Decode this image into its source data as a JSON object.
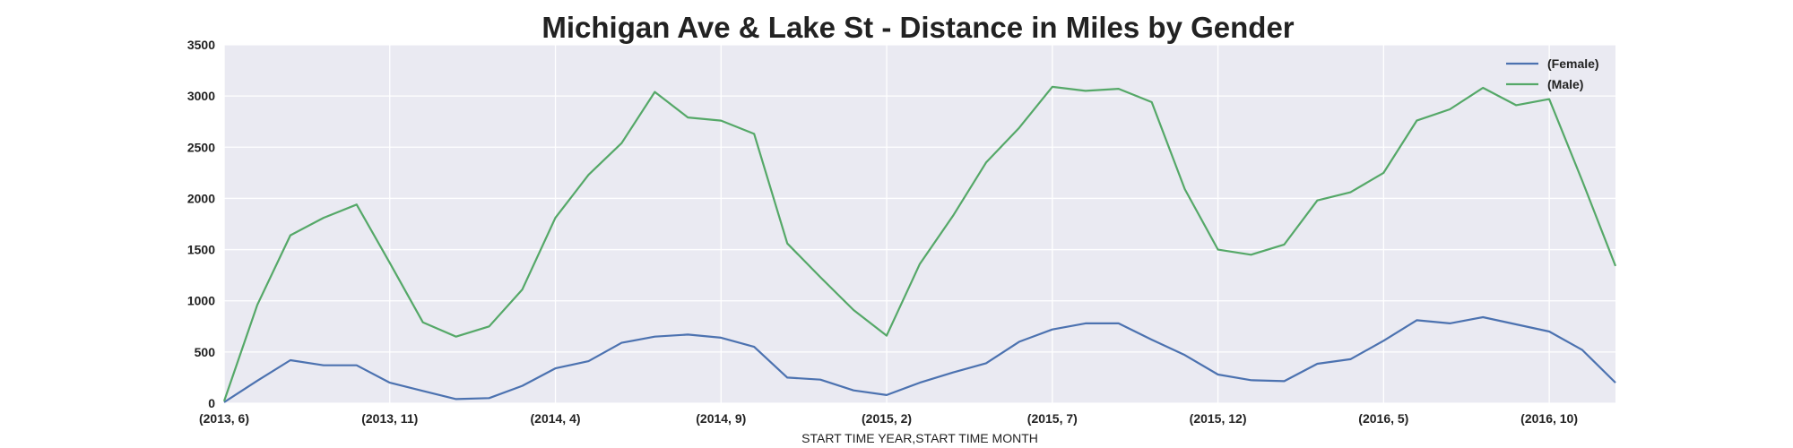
{
  "chart_data": {
    "type": "line",
    "title": "Michigan Ave & Lake St - Distance in Miles by Gender",
    "xlabel": "START TIME YEAR,START TIME MONTH",
    "ylabel": "",
    "ylim": [
      0,
      3500
    ],
    "yticks": [
      "0",
      "500",
      "1000",
      "1500",
      "2000",
      "2500",
      "3000",
      "3500"
    ],
    "x": [
      "(2013, 6)",
      "(2013, 7)",
      "(2013, 8)",
      "(2013, 9)",
      "(2013, 10)",
      "(2013, 11)",
      "(2013, 12)",
      "(2014, 1)",
      "(2014, 2)",
      "(2014, 3)",
      "(2014, 4)",
      "(2014, 5)",
      "(2014, 6)",
      "(2014, 7)",
      "(2014, 8)",
      "(2014, 9)",
      "(2014, 10)",
      "(2014, 11)",
      "(2014, 12)",
      "(2015, 1)",
      "(2015, 2)",
      "(2015, 3)",
      "(2015, 4)",
      "(2015, 5)",
      "(2015, 6)",
      "(2015, 7)",
      "(2015, 8)",
      "(2015, 9)",
      "(2015, 10)",
      "(2015, 11)",
      "(2015, 12)",
      "(2016, 1)",
      "(2016, 2)",
      "(2016, 3)",
      "(2016, 4)",
      "(2016, 5)",
      "(2016, 6)",
      "(2016, 7)",
      "(2016, 8)",
      "(2016, 9)",
      "(2016, 10)",
      "(2016, 11)",
      "(2016, 12)"
    ],
    "xticks": [
      "(2013, 6)",
      "(2013, 11)",
      "(2014, 4)",
      "(2014, 9)",
      "(2015, 2)",
      "(2015, 7)",
      "(2015, 12)",
      "(2016, 5)",
      "(2016, 10)"
    ],
    "series": [
      {
        "name": "(Female)",
        "color": "#4c72b0",
        "values": [
          10,
          220,
          420,
          370,
          370,
          200,
          120,
          40,
          50,
          170,
          340,
          410,
          590,
          650,
          670,
          640,
          550,
          250,
          230,
          125,
          80,
          200,
          300,
          390,
          600,
          720,
          780,
          780,
          620,
          470,
          280,
          225,
          215,
          385,
          430,
          610,
          810,
          780,
          840,
          770,
          700,
          520,
          200
        ]
      },
      {
        "name": "(Male)",
        "color": "#55a868",
        "values": [
          20,
          960,
          1640,
          1810,
          1940,
          1370,
          790,
          650,
          750,
          1110,
          1810,
          2230,
          2540,
          3040,
          2790,
          2760,
          2630,
          1560,
          1230,
          910,
          660,
          1360,
          1830,
          2350,
          2690,
          3090,
          3050,
          3070,
          2940,
          2090,
          1500,
          1450,
          1550,
          1980,
          2060,
          2250,
          2760,
          2870,
          3080,
          2910,
          2970,
          2170,
          1340
        ]
      }
    ],
    "grid": true,
    "legend": "top-right"
  }
}
